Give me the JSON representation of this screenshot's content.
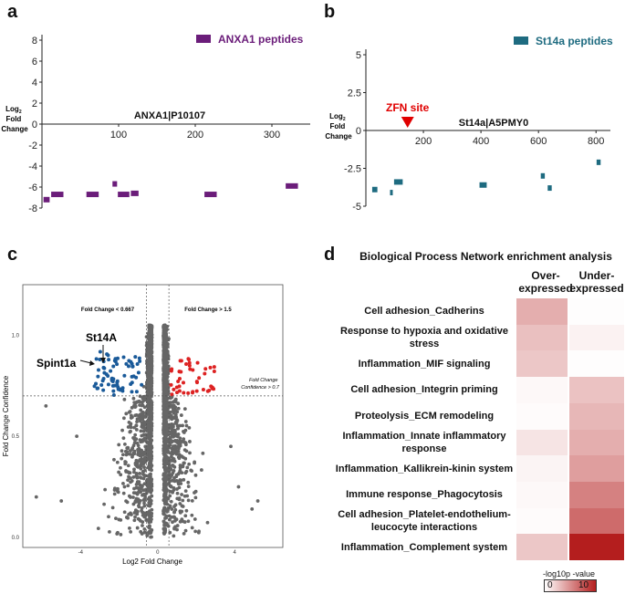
{
  "panels": {
    "a": {
      "letter": "a",
      "legend": "ANXA1 peptides",
      "protein_label": "ANXA1|P10107",
      "ylabel": [
        "Log",
        "2",
        "Fold",
        "Change"
      ],
      "color": "#6b1d7a"
    },
    "b": {
      "letter": "b",
      "legend": "St14a peptides",
      "protein_label": "St14a|A5PMY0",
      "zfn_label": "ZFN site",
      "ylabel": [
        "Log",
        "2",
        "Fold",
        "Change"
      ],
      "color": "#1e6b80",
      "zfn_color": "#e00000"
    },
    "c": {
      "letter": "c",
      "left_threshold": "Fold Change < 0.667",
      "right_threshold": "Fold Change > 1.5",
      "confidence_note": [
        "Fold Change",
        "Confidence > 0.7"
      ],
      "annotations": [
        "St14A",
        "Spint1a"
      ],
      "xlabel": "Log2 Fold Change",
      "ylabel": "Fold Change Confidence",
      "colors": {
        "neutral": "#666666",
        "down": "#1a5a99",
        "up": "#dd2222"
      }
    },
    "d": {
      "letter": "d",
      "title": "Biological Process Network enrichment analysis",
      "col_over": [
        "Over-",
        "expressed"
      ],
      "col_under": [
        "Under-",
        "expressed"
      ],
      "legend_title": "-log10p -value",
      "legend_min": "0",
      "legend_max": "10"
    }
  },
  "chart_data": [
    {
      "panel": "a",
      "type": "scatter",
      "title": "ANXA1|P10107",
      "xlabel": "",
      "ylabel": "Log2 Fold Change",
      "ylim": [
        -8,
        8
      ],
      "xlim": [
        0,
        350
      ],
      "xticks": [
        100,
        200,
        300
      ],
      "yticks": [
        8,
        6,
        4,
        2,
        0,
        -2,
        -4,
        -6,
        -8
      ],
      "series": [
        {
          "name": "ANXA1 peptides",
          "segments": [
            {
              "start": 2,
              "end": 10,
              "value": -7.2
            },
            {
              "start": 12,
              "end": 28,
              "value": -6.7
            },
            {
              "start": 58,
              "end": 74,
              "value": -6.7
            },
            {
              "start": 92,
              "end": 98,
              "value": -5.7
            },
            {
              "start": 99,
              "end": 114,
              "value": -6.7
            },
            {
              "start": 116,
              "end": 126,
              "value": -6.6
            },
            {
              "start": 212,
              "end": 228,
              "value": -6.7
            },
            {
              "start": 318,
              "end": 334,
              "value": -5.9
            }
          ]
        }
      ]
    },
    {
      "panel": "b",
      "type": "scatter",
      "title": "St14a|A5PMY0",
      "xlabel": "",
      "ylabel": "Log2 Fold Change",
      "ylim": [
        -5,
        5
      ],
      "xlim": [
        0,
        850
      ],
      "xticks": [
        200,
        400,
        600,
        800
      ],
      "yticks": [
        5,
        2.5,
        0,
        -2.5,
        -5
      ],
      "zfn_site": 145,
      "series": [
        {
          "name": "St14a peptides",
          "segments": [
            {
              "start": 22,
              "end": 40,
              "value": -3.9
            },
            {
              "start": 84,
              "end": 90,
              "value": -4.1
            },
            {
              "start": 98,
              "end": 128,
              "value": -3.4
            },
            {
              "start": 395,
              "end": 420,
              "value": -3.6
            },
            {
              "start": 608,
              "end": 622,
              "value": -3.0
            },
            {
              "start": 632,
              "end": 646,
              "value": -3.8
            },
            {
              "start": 802,
              "end": 816,
              "value": -2.1
            }
          ]
        }
      ]
    },
    {
      "panel": "c",
      "type": "scatter",
      "title": "",
      "xlabel": "Log2 Fold Change",
      "ylabel": "Fold Change Confidence",
      "xlim": [
        -7,
        6.5
      ],
      "ylim": [
        -0.05,
        1.25
      ],
      "xticks": [
        -4,
        0,
        4
      ],
      "yticks": [
        0.0,
        0.5,
        1.0
      ],
      "thresholds": {
        "fc_down_log2": -0.585,
        "fc_up_log2": 0.585,
        "confidence": 0.7
      },
      "series_note": "~2700 peptides; grey = not significant, blue = down (FC < 0.667, confidence > 0.7), red = up (FC > 1.5, confidence > 0.7)",
      "highlighted": [
        {
          "name": "St14A",
          "x": -2.8,
          "y": 0.87
        },
        {
          "name": "Spint1a",
          "x": -3.0,
          "y": 0.88
        }
      ]
    },
    {
      "panel": "d",
      "type": "heatmap",
      "title": "Biological Process Network enrichment analysis",
      "columns": [
        "Over-expressed",
        "Under-expressed"
      ],
      "colorbar": {
        "label": "-log10p -value",
        "min": 0,
        "max": 10,
        "low_color": "#ffffff",
        "high_color": "#b41e1e"
      },
      "rows": [
        {
          "label": [
            "Cell adhesion_Cadherins"
          ],
          "values": [
            3.6,
            0.1
          ]
        },
        {
          "label": [
            "Response to hypoxia and oxidative",
            "stress"
          ],
          "values": [
            2.8,
            0.6
          ]
        },
        {
          "label": [
            "Inflammation_MIF signaling"
          ],
          "values": [
            2.5,
            0.1
          ]
        },
        {
          "label": [
            "Cell adhesion_Integrin priming"
          ],
          "values": [
            0.3,
            2.7
          ]
        },
        {
          "label": [
            "Proteolysis_ECM remodeling"
          ],
          "values": [
            0.2,
            3.2
          ]
        },
        {
          "label": [
            "Inflammation_Innate inflammatory",
            "response"
          ],
          "values": [
            1.2,
            3.6
          ]
        },
        {
          "label": [
            "Inflammation_Kallikrein-kinin system"
          ],
          "values": [
            0.5,
            4.3
          ]
        },
        {
          "label": [
            "Immune response_Phagocytosis"
          ],
          "values": [
            0.3,
            5.6
          ]
        },
        {
          "label": [
            "Cell adhesion_Platelet-endothelium-",
            "leucocyte interactions"
          ],
          "values": [
            0.2,
            6.6
          ]
        },
        {
          "label": [
            "Inflammation_Complement system"
          ],
          "values": [
            2.5,
            10
          ]
        }
      ]
    }
  ]
}
